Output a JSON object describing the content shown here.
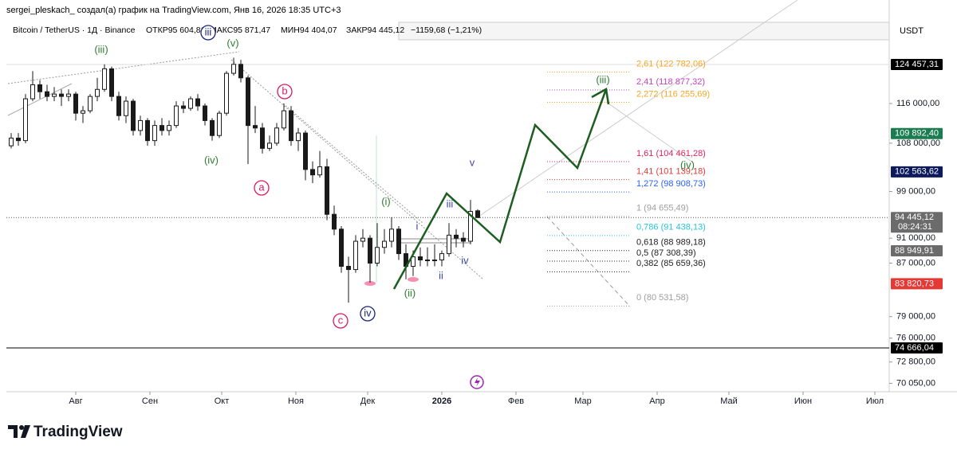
{
  "header": {
    "author_line": "sergei_pleskach_ создал(а) график на TradingView.com, Янв 16, 2026 18:35 UTC+3",
    "symbol": "Bitcoin / TetherUS · 1Д · Binance",
    "open": "ОТКР95 604,81",
    "high": "МАКС95 871,47",
    "low": "МИН94 404,07",
    "close": "ЗАКР94 445,12",
    "change": "−1159,68 (−1,21%)",
    "currency": "USDT"
  },
  "footer": {
    "brand": "TradingView"
  },
  "chart_data": {
    "type": "candlestick",
    "log_scale": true,
    "up_color": "#1a1a1a",
    "down_color": "#1a1a1a",
    "x": [
      2,
      5,
      8,
      11,
      14,
      17,
      20,
      23,
      26,
      29,
      32,
      35,
      38,
      41,
      44,
      47,
      50,
      53,
      56,
      59,
      62,
      65,
      68,
      71,
      74,
      77,
      80,
      83,
      86,
      89,
      92,
      95,
      98,
      101,
      104,
      107,
      110,
      113,
      116,
      119,
      122,
      125,
      128,
      131,
      134,
      137,
      140,
      143,
      146,
      149,
      152,
      155,
      158,
      161,
      164,
      167,
      170,
      173,
      176,
      179,
      182,
      185,
      188,
      191,
      194,
      197
    ],
    "ohlc": [
      [
        107500,
        110000,
        107000,
        109000
      ],
      [
        109000,
        110000,
        107500,
        108500
      ],
      [
        108500,
        118000,
        108000,
        117000
      ],
      [
        117000,
        123000,
        116500,
        120000
      ],
      [
        120000,
        121000,
        117000,
        118500
      ],
      [
        118500,
        120000,
        116500,
        117500
      ],
      [
        117500,
        119500,
        116500,
        118000
      ],
      [
        118000,
        119000,
        115500,
        117500
      ],
      [
        117500,
        119000,
        116500,
        118000
      ],
      [
        118000,
        118500,
        112500,
        114000
      ],
      [
        114000,
        115500,
        112000,
        114500
      ],
      [
        114500,
        118000,
        114000,
        117500
      ],
      [
        117500,
        121500,
        116500,
        119000
      ],
      [
        119000,
        124500,
        118500,
        123500
      ],
      [
        123500,
        124000,
        116500,
        117500
      ],
      [
        117500,
        118500,
        112500,
        113500
      ],
      [
        113500,
        117500,
        112000,
        116500
      ],
      [
        116500,
        117000,
        109500,
        110500
      ],
      [
        110500,
        113500,
        109500,
        112500
      ],
      [
        112500,
        113000,
        107500,
        108500
      ],
      [
        108500,
        112500,
        107500,
        111500
      ],
      [
        111500,
        113000,
        109500,
        110500
      ],
      [
        110500,
        112500,
        109500,
        111500
      ],
      [
        111500,
        116500,
        111000,
        115500
      ],
      [
        115500,
        116500,
        114000,
        115000
      ],
      [
        115000,
        117500,
        114500,
        117000
      ],
      [
        117000,
        118000,
        114500,
        115500
      ],
      [
        115500,
        116000,
        111500,
        112500
      ],
      [
        112500,
        113000,
        108500,
        109500
      ],
      [
        109500,
        114500,
        109000,
        114000
      ],
      [
        114000,
        123000,
        113500,
        122500
      ],
      [
        122500,
        126000,
        122000,
        124500
      ],
      [
        124500,
        125500,
        120500,
        121500
      ],
      [
        121500,
        122000,
        104000,
        111500
      ],
      [
        111500,
        115500,
        110000,
        111000
      ],
      [
        111000,
        112000,
        106000,
        107000
      ],
      [
        107000,
        109500,
        106500,
        108000
      ],
      [
        108000,
        112000,
        107500,
        111000
      ],
      [
        111000,
        116000,
        110500,
        114500
      ],
      [
        114500,
        115500,
        107500,
        108500
      ],
      [
        108500,
        111000,
        106500,
        110000
      ],
      [
        110000,
        110500,
        101000,
        103000
      ],
      [
        103000,
        104500,
        100500,
        102000
      ],
      [
        102000,
        106500,
        101500,
        103500
      ],
      [
        103500,
        105000,
        94000,
        95000
      ],
      [
        95000,
        96500,
        91500,
        92500
      ],
      [
        92500,
        93000,
        85500,
        86500
      ],
      [
        86500,
        88000,
        81000,
        86000
      ],
      [
        86000,
        91500,
        85500,
        90500
      ],
      [
        90500,
        92500,
        89500,
        91000
      ],
      [
        91000,
        91500,
        84000,
        87000
      ],
      [
        87000,
        93500,
        86500,
        89500
      ],
      [
        89500,
        92500,
        88500,
        90500
      ],
      [
        90500,
        94500,
        89500,
        92500
      ],
      [
        92500,
        93000,
        87500,
        88500
      ],
      [
        88500,
        90000,
        84500,
        86500
      ],
      [
        86500,
        89000,
        85000,
        88000
      ],
      [
        88000,
        89500,
        86500,
        87500
      ],
      [
        87500,
        89500,
        86500,
        87500
      ],
      [
        87500,
        90000,
        86500,
        87500
      ],
      [
        87500,
        89000,
        86500,
        88500
      ],
      [
        88500,
        93500,
        88000,
        91500
      ],
      [
        91500,
        92500,
        89500,
        91000
      ],
      [
        91000,
        92000,
        89500,
        90500
      ],
      [
        90500,
        97500,
        90000,
        95500
      ],
      [
        95604.81,
        95871.47,
        94404.07,
        94445.12
      ]
    ],
    "xlim": [
      0,
      369
    ],
    "xticks": [
      {
        "value": 29,
        "label": "Авг"
      },
      {
        "value": 60,
        "label": "Сен"
      },
      {
        "value": 90,
        "label": "Окт"
      },
      {
        "value": 121,
        "label": "Ноя"
      },
      {
        "value": 151,
        "label": "Дек"
      },
      {
        "value": 182,
        "label": "2026"
      },
      {
        "value": 213,
        "label": "Фев"
      },
      {
        "value": 241,
        "label": "Мар"
      },
      {
        "value": 272,
        "label": "Апр"
      },
      {
        "value": 302,
        "label": "Май"
      },
      {
        "value": 333,
        "label": "Июн"
      },
      {
        "value": 363,
        "label": "Июл"
      }
    ],
    "ylim": [
      69000,
      134300
    ],
    "yticks": [
      {
        "value": 116000,
        "label": "116 000,00"
      },
      {
        "value": 108000,
        "label": "108 000,00"
      },
      {
        "value": 99000,
        "label": "99 000,00"
      },
      {
        "value": 91000,
        "label": "91 000,00"
      },
      {
        "value": 87000,
        "label": "87 000,00"
      },
      {
        "value": 79000,
        "label": "79 000,00"
      },
      {
        "value": 76000,
        "label": "76 000,00"
      },
      {
        "value": 72800,
        "label": "72 800,00"
      },
      {
        "value": 70050,
        "label": "70 050,00"
      }
    ],
    "price_labels": [
      {
        "value": 124457.31,
        "label": "124 457,31",
        "color": "#000000"
      },
      {
        "value": 109892.4,
        "label": "109 892,40",
        "color": "#1b7d4f"
      },
      {
        "value": 102563.62,
        "label": "102 563,62",
        "color": "#0d1b5e"
      },
      {
        "value": 94445.12,
        "label": "94 445,12",
        "color": "#6b6b6b",
        "countdown": "08:24:31"
      },
      {
        "value": 88949.91,
        "label": "88 949,91",
        "color": "#6b6b6b"
      },
      {
        "value": 83820.73,
        "label": "83 820,73",
        "color": "#e53935"
      },
      {
        "value": 74666.04,
        "label": "74 666,04",
        "color": "#000000"
      }
    ],
    "fib_levels": [
      {
        "value": 122782.06,
        "label": "2,61 (122 782,06)",
        "color": "#f5a623"
      },
      {
        "value": 118877.32,
        "label": "2,41 (118 877,32)",
        "color": "#c13fc1"
      },
      {
        "value": 116255.69,
        "label": "2,272 (116 255,69)",
        "color": "#f5a623"
      },
      {
        "value": 104461.28,
        "label": "1,61 (104 461,28)",
        "color": "#e0245e"
      },
      {
        "value": 101139.18,
        "label": "1,41 (101 139,18)",
        "color": "#e53935"
      },
      {
        "value": 98908.73,
        "label": "1,272 (98 908,73)",
        "color": "#2962ff"
      },
      {
        "value": 94655.49,
        "label": "1 (94 655,49)",
        "color": "#9e9e9e"
      },
      {
        "value": 91438.13,
        "label": "0,786 (91 438,13)",
        "color": "#26c6da"
      },
      {
        "value": 88989.18,
        "label": "0,618 (88 989,18)",
        "color": "#222222"
      },
      {
        "value": 87308.39,
        "label": "0,5 (87 308,39)",
        "color": "#222222"
      },
      {
        "value": 85659.36,
        "label": "0,382 (85 659,36)",
        "color": "#222222"
      },
      {
        "value": 80531.58,
        "label": "0 (80 531,58)",
        "color": "#9e9e9e"
      }
    ],
    "wave_labels": [
      {
        "text": "(iii)",
        "color": "#2e7d32",
        "circled": false
      },
      {
        "text": "iii",
        "color": "#1a237e",
        "circled": true
      },
      {
        "text": "(v)",
        "color": "#2e7d32",
        "circled": false
      },
      {
        "text": "(iv)",
        "color": "#2e7d32",
        "circled": false
      },
      {
        "text": "b",
        "color": "#d81b60",
        "circled": true
      },
      {
        "text": "a",
        "color": "#d81b60",
        "circled": true
      },
      {
        "text": "c",
        "color": "#d81b60",
        "circled": true
      },
      {
        "text": "iv",
        "color": "#1a237e",
        "circled": true
      },
      {
        "text": "(i)",
        "color": "#2e7d32",
        "circled": false
      },
      {
        "text": "i",
        "color": "#3949ab",
        "circled": false
      },
      {
        "text": "(ii)",
        "color": "#2e7d32",
        "circled": false
      },
      {
        "text": "ii",
        "color": "#3949ab",
        "circled": false
      },
      {
        "text": "iii",
        "color": "#3949ab",
        "circled": false
      },
      {
        "text": "iv",
        "color": "#3949ab",
        "circled": false
      },
      {
        "text": "v",
        "color": "#3949ab",
        "circled": false
      },
      {
        "text": "(iii)",
        "color": "#2e7d32",
        "circled": false
      },
      {
        "text": "(iv)",
        "color": "#2e7d32",
        "circled": false
      }
    ]
  }
}
